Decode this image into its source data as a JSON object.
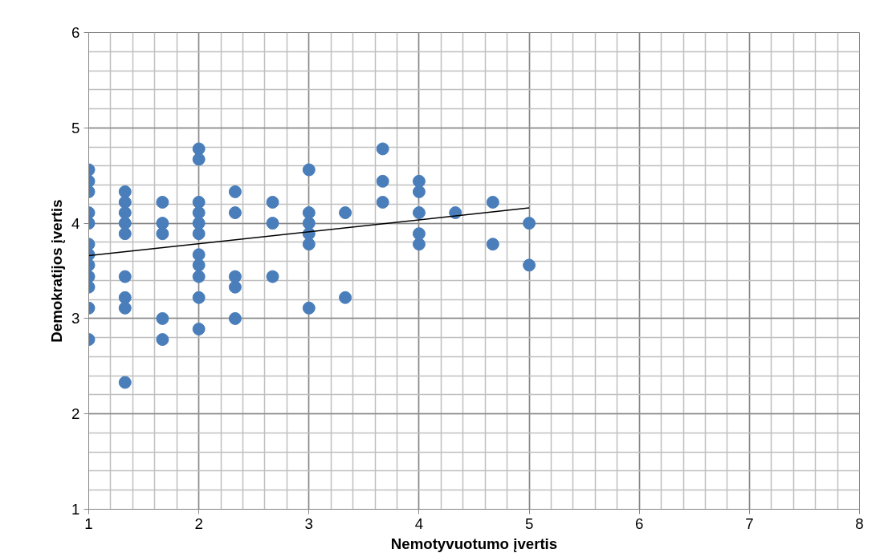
{
  "chart_data": {
    "type": "scatter",
    "xlabel": "Nemotyvuotumo įvertis",
    "ylabel": "Demokratijos įvertis",
    "xlim": [
      1,
      8
    ],
    "xticks": [
      1,
      2,
      3,
      4,
      5,
      6,
      7,
      8
    ],
    "ylim": [
      1,
      6
    ],
    "yticks": [
      1,
      2,
      3,
      4,
      5,
      6
    ],
    "grid": true,
    "marker": "circle",
    "series": [
      {
        "color": "#4a7ebb",
        "x": [
          1,
          1,
          1,
          1,
          1,
          1,
          1,
          1,
          1,
          1,
          1,
          1,
          1.33,
          1.33,
          1.33,
          1.33,
          1.33,
          1.33,
          1.33,
          1.33,
          1.33,
          1.67,
          1.67,
          1.67,
          1.67,
          1.67,
          2,
          2,
          2,
          2,
          2,
          2,
          2,
          2,
          2,
          2,
          2,
          2.33,
          2.33,
          2.33,
          2.33,
          2.33,
          2.67,
          2.67,
          2.67,
          3,
          3,
          3,
          3,
          3,
          3,
          3.33,
          3.33,
          3.67,
          3.67,
          3.67,
          4,
          4,
          4,
          4,
          4,
          4.33,
          4.67,
          4.67,
          5,
          5
        ],
        "values": [
          4.56,
          4.44,
          4.33,
          4.11,
          4.0,
          3.78,
          3.67,
          3.56,
          3.44,
          3.33,
          3.11,
          2.78,
          4.33,
          4.22,
          4.11,
          4.0,
          3.89,
          3.44,
          3.22,
          3.11,
          2.33,
          4.22,
          4.0,
          3.89,
          3.0,
          2.78,
          4.78,
          4.67,
          4.22,
          4.11,
          4.0,
          3.89,
          3.67,
          3.56,
          3.44,
          3.22,
          2.89,
          4.33,
          4.11,
          3.44,
          3.33,
          3.0,
          4.22,
          4.0,
          3.44,
          4.56,
          4.11,
          4.0,
          3.89,
          3.78,
          3.11,
          4.11,
          3.22,
          4.78,
          4.44,
          4.22,
          4.44,
          4.33,
          4.11,
          3.89,
          3.78,
          4.11,
          4.22,
          3.78,
          4.0,
          3.56
        ]
      },
      {
        "type": "line",
        "color": "#000000",
        "marker": "none",
        "x": [
          1,
          5
        ],
        "values": [
          3.66,
          4.16
        ]
      }
    ]
  }
}
